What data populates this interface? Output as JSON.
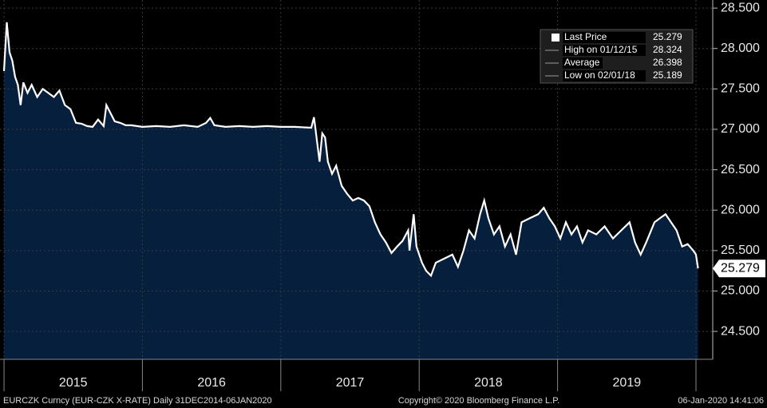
{
  "chart_data": {
    "type": "area",
    "series": [
      {
        "name": "EURCZK Curncy",
        "color": "#ffffff",
        "fill": "#061f3d",
        "x": [
          2015.0,
          2015.02,
          2015.04,
          2015.06,
          2015.08,
          2015.1,
          2015.12,
          2015.14,
          2015.17,
          2015.2,
          2015.24,
          2015.28,
          2015.32,
          2015.36,
          2015.4,
          2015.44,
          2015.48,
          2015.52,
          2015.56,
          2015.6,
          2015.64,
          2015.68,
          2015.72,
          2015.74,
          2015.8,
          2015.84,
          2015.88,
          2015.92,
          2015.96,
          2016.0,
          2016.1,
          2016.2,
          2016.3,
          2016.4,
          2016.46,
          2016.49,
          2016.52,
          2016.6,
          2016.7,
          2016.8,
          2016.9,
          2017.0,
          2017.1,
          2017.22,
          2017.24,
          2017.28,
          2017.3,
          2017.32,
          2017.34,
          2017.37,
          2017.4,
          2017.44,
          2017.48,
          2017.52,
          2017.56,
          2017.6,
          2017.64,
          2017.68,
          2017.72,
          2017.76,
          2017.8,
          2017.84,
          2017.88,
          2017.92,
          2017.93,
          2017.96,
          2017.98,
          2018.02,
          2018.05,
          2018.085,
          2018.12,
          2018.18,
          2018.24,
          2018.28,
          2018.32,
          2018.36,
          2018.4,
          2018.44,
          2018.47,
          2018.5,
          2018.54,
          2018.58,
          2018.62,
          2018.66,
          2018.7,
          2018.74,
          2018.8,
          2018.86,
          2018.9,
          2018.94,
          2018.98,
          2019.02,
          2019.06,
          2019.1,
          2019.14,
          2019.18,
          2019.22,
          2019.28,
          2019.34,
          2019.4,
          2019.46,
          2019.52,
          2019.56,
          2019.6,
          2019.64,
          2019.7,
          2019.74,
          2019.78,
          2019.82,
          2019.86,
          2019.9,
          2019.94,
          2019.98,
          2020.0,
          2020.015
        ],
        "values": [
          27.72,
          28.324,
          27.95,
          27.85,
          27.65,
          27.55,
          27.3,
          27.58,
          27.45,
          27.55,
          27.4,
          27.5,
          27.45,
          27.4,
          27.48,
          27.3,
          27.25,
          27.08,
          27.07,
          27.04,
          27.03,
          27.12,
          27.04,
          27.3,
          27.1,
          27.08,
          27.05,
          27.05,
          27.04,
          27.03,
          27.04,
          27.03,
          27.05,
          27.03,
          27.08,
          27.14,
          27.05,
          27.03,
          27.04,
          27.03,
          27.04,
          27.03,
          27.03,
          27.02,
          27.15,
          26.6,
          26.95,
          26.9,
          26.6,
          26.45,
          26.55,
          26.3,
          26.2,
          26.12,
          26.15,
          26.12,
          26.05,
          25.85,
          25.7,
          25.6,
          25.47,
          25.55,
          25.62,
          25.75,
          25.5,
          25.95,
          25.55,
          25.35,
          25.25,
          25.189,
          25.35,
          25.4,
          25.45,
          25.3,
          25.5,
          25.75,
          25.65,
          25.95,
          26.12,
          25.9,
          25.7,
          25.8,
          25.55,
          25.7,
          25.45,
          25.85,
          25.9,
          25.95,
          26.03,
          25.9,
          25.8,
          25.65,
          25.85,
          25.7,
          25.8,
          25.6,
          25.75,
          25.7,
          25.8,
          25.65,
          25.75,
          25.85,
          25.6,
          25.45,
          25.6,
          25.85,
          25.9,
          25.95,
          25.85,
          25.75,
          25.55,
          25.58,
          25.5,
          25.45,
          25.279
        ]
      }
    ],
    "xlim": [
      2014.971,
      2020.121
    ],
    "xticks": [
      2015,
      2016,
      2017,
      2018,
      2019,
      2020
    ],
    "categories": [
      "2015",
      "2016",
      "2017",
      "2018",
      "2019"
    ],
    "ylim": [
      24.155,
      28.6
    ],
    "yticks": [
      {
        "value": 24.5,
        "label": "24.500"
      },
      {
        "value": 25,
        "label": "25.000"
      },
      {
        "value": 25.5,
        "label": "25.500"
      },
      {
        "value": 26,
        "label": "26.000"
      },
      {
        "value": 26.5,
        "label": "26.500"
      },
      {
        "value": 27,
        "label": "27.000"
      },
      {
        "value": 27.5,
        "label": "27.500"
      },
      {
        "value": 28,
        "label": "28.000"
      },
      {
        "value": 28.5,
        "label": "28.500"
      }
    ],
    "grid": true,
    "legend": [
      {
        "label": "Last Price",
        "value": 25.279
      },
      {
        "label": "High on 01/12/15",
        "value": 28.324
      },
      {
        "label": "Average",
        "value": 26.398
      },
      {
        "label": "Low on 02/01/18",
        "value": 25.189
      }
    ],
    "footer": {
      "left": "EURCZK Curncy (EUR-CZK X-RATE)  Daily 31DEC2014-06JAN2020",
      "center": "Copyright© 2020 Bloomberg Finance L.P.",
      "right": "06-Jan-2020 14:41:06"
    }
  }
}
